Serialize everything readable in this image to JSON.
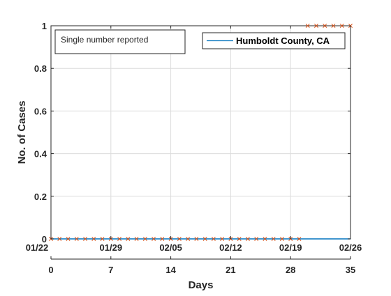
{
  "chart_data": {
    "type": "line",
    "ylabel": "No. of Cases",
    "xlabel": "Days",
    "xlim": [
      0,
      35
    ],
    "ylim": [
      0,
      1
    ],
    "grid": true,
    "y_ticks": [
      0,
      0.2,
      0.4,
      0.6,
      0.8,
      1
    ],
    "y_tick_labels": [
      "0",
      "0.2",
      "0.4",
      "0.6",
      "0.8",
      "1"
    ],
    "x_ticks": [
      0,
      7,
      14,
      21,
      28,
      35
    ],
    "x_tick_labels": [
      "0",
      "7",
      "14",
      "21",
      "28",
      "35"
    ],
    "date_ticks": [
      0,
      7,
      14,
      21,
      28,
      35
    ],
    "date_tick_labels": [
      "01/22",
      "01/29",
      "02/05",
      "02/12",
      "02/19",
      "02/26"
    ],
    "annotation": "Single number reported",
    "legend_position": "top-right",
    "series": [
      {
        "name": "Humboldt County, CA",
        "kind": "line",
        "color": "#0072BD",
        "x": [
          0,
          35
        ],
        "y": [
          0,
          0
        ]
      },
      {
        "kind": "markers",
        "marker": "x",
        "color": "#D95319",
        "x": [
          0,
          1,
          2,
          3,
          4,
          5,
          6,
          7,
          8,
          9,
          10,
          11,
          12,
          13,
          14,
          15,
          16,
          17,
          18,
          19,
          20,
          21,
          22,
          23,
          24,
          25,
          26,
          27,
          28,
          29,
          30,
          31,
          32,
          33,
          34,
          35
        ],
        "y": [
          0,
          0,
          0,
          0,
          0,
          0,
          0,
          0,
          0,
          0,
          0,
          0,
          0,
          0,
          0,
          0,
          0,
          0,
          0,
          0,
          0,
          0,
          0,
          0,
          0,
          0,
          0,
          0,
          0,
          0,
          1,
          1,
          1,
          1,
          1,
          1
        ]
      }
    ]
  }
}
